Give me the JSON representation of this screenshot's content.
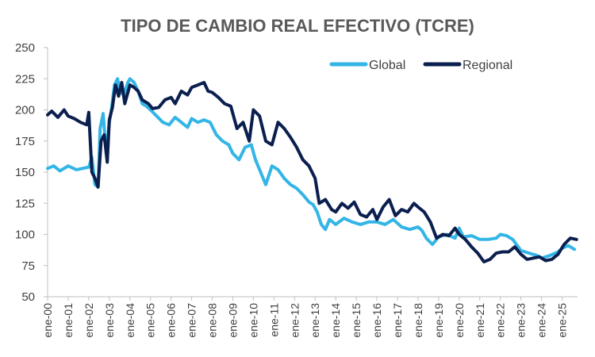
{
  "chart_data": {
    "type": "line",
    "title": "TIPO DE CAMBIO REAL EFECTIVO (TCRE)",
    "xlabel": "",
    "ylabel": "",
    "ylim": [
      50,
      250
    ],
    "yticks": [
      50,
      75,
      100,
      125,
      150,
      175,
      200,
      225,
      250
    ],
    "x_range": [
      2000.0,
      2025.75
    ],
    "xticks": [
      "ene-00",
      "ene-01",
      "ene-02",
      "ene-03",
      "ene-04",
      "ene-05",
      "ene-06",
      "ene-07",
      "ene-08",
      "ene-09",
      "ene-10",
      "ene-11",
      "ene-12",
      "ene-13",
      "ene-14",
      "ene-15",
      "ene-16",
      "ene-17",
      "ene-18",
      "ene-19",
      "ene-20",
      "ene-21",
      "ene-22",
      "ene-23",
      "ene-24",
      "ene-25"
    ],
    "grid": false,
    "legend_position": "top-right",
    "colors": {
      "Global": "#33b5e6",
      "Regional": "#0b1f4f"
    },
    "series": [
      {
        "name": "Global",
        "x": [
          2000.0,
          2000.3,
          2000.6,
          2001.0,
          2001.4,
          2001.7,
          2002.0,
          2002.15,
          2002.3,
          2002.45,
          2002.55,
          2002.7,
          2002.85,
          2003.0,
          2003.1,
          2003.25,
          2003.4,
          2003.5,
          2003.7,
          2003.9,
          2004.0,
          2004.2,
          2004.4,
          2004.6,
          2004.8,
          2005.0,
          2005.3,
          2005.6,
          2005.9,
          2006.2,
          2006.5,
          2006.8,
          2007.0,
          2007.3,
          2007.6,
          2007.9,
          2008.2,
          2008.5,
          2008.8,
          2009.0,
          2009.3,
          2009.6,
          2009.9,
          2010.1,
          2010.4,
          2010.6,
          2010.9,
          2011.2,
          2011.5,
          2011.8,
          2012.1,
          2012.4,
          2012.7,
          2012.9,
          2013.1,
          2013.3,
          2013.5,
          2013.7,
          2014.0,
          2014.4,
          2014.8,
          2015.2,
          2015.6,
          2016.0,
          2016.4,
          2016.8,
          2017.2,
          2017.6,
          2018.0,
          2018.2,
          2018.4,
          2018.7,
          2019.0,
          2019.4,
          2019.8,
          2020.0,
          2020.2,
          2020.6,
          2021.0,
          2021.4,
          2021.8,
          2022.0,
          2022.3,
          2022.6,
          2023.0,
          2023.4,
          2023.8,
          2024.0,
          2024.4,
          2024.8,
          2025.0,
          2025.3,
          2025.6
        ],
        "values": [
          153,
          155,
          151,
          155,
          152,
          153,
          154,
          162,
          140,
          138,
          185,
          197,
          165,
          190,
          200,
          220,
          225,
          215,
          212,
          222,
          225,
          222,
          215,
          205,
          203,
          200,
          195,
          190,
          188,
          194,
          190,
          186,
          193,
          190,
          192,
          190,
          180,
          175,
          172,
          165,
          160,
          170,
          172,
          160,
          148,
          140,
          155,
          152,
          145,
          140,
          137,
          132,
          126,
          124,
          118,
          108,
          104,
          112,
          108,
          113,
          110,
          108,
          110,
          110,
          108,
          112,
          106,
          104,
          106,
          103,
          97,
          92,
          98,
          100,
          97,
          105,
          98,
          99,
          96,
          96,
          97,
          100,
          99,
          96,
          87,
          85,
          83,
          81,
          83,
          86,
          89,
          91,
          88
        ]
      },
      {
        "name": "Regional",
        "x": [
          2000.0,
          2000.2,
          2000.5,
          2000.8,
          2001.0,
          2001.3,
          2001.6,
          2001.9,
          2002.0,
          2002.15,
          2002.3,
          2002.45,
          2002.6,
          2002.75,
          2002.9,
          2003.0,
          2003.15,
          2003.3,
          2003.45,
          2003.6,
          2003.75,
          2003.9,
          2004.0,
          2004.2,
          2004.4,
          2004.6,
          2004.9,
          2005.1,
          2005.4,
          2005.7,
          2006.0,
          2006.2,
          2006.5,
          2006.8,
          2007.0,
          2007.3,
          2007.6,
          2007.8,
          2008.0,
          2008.3,
          2008.6,
          2008.9,
          2009.2,
          2009.5,
          2009.8,
          2010.0,
          2010.3,
          2010.6,
          2010.9,
          2011.2,
          2011.5,
          2011.8,
          2012.1,
          2012.4,
          2012.7,
          2013.0,
          2013.2,
          2013.5,
          2013.8,
          2014.0,
          2014.3,
          2014.6,
          2014.9,
          2015.2,
          2015.5,
          2015.8,
          2016.0,
          2016.3,
          2016.6,
          2016.9,
          2017.2,
          2017.5,
          2017.8,
          2018.0,
          2018.3,
          2018.6,
          2018.9,
          2019.2,
          2019.5,
          2019.8,
          2020.0,
          2020.3,
          2020.6,
          2020.9,
          2021.2,
          2021.5,
          2021.8,
          2022.1,
          2022.4,
          2022.7,
          2023.0,
          2023.3,
          2023.6,
          2023.9,
          2024.2,
          2024.5,
          2024.8,
          2025.1,
          2025.4,
          2025.7
        ],
        "values": [
          196,
          199,
          194,
          200,
          195,
          193,
          190,
          188,
          198,
          150,
          145,
          138,
          175,
          180,
          158,
          192,
          202,
          220,
          211,
          222,
          205,
          214,
          220,
          218,
          215,
          208,
          205,
          201,
          202,
          208,
          210,
          205,
          215,
          212,
          218,
          220,
          222,
          215,
          214,
          210,
          205,
          203,
          185,
          190,
          175,
          200,
          195,
          175,
          172,
          190,
          185,
          178,
          170,
          160,
          155,
          145,
          125,
          128,
          120,
          118,
          125,
          121,
          126,
          116,
          114,
          120,
          112,
          122,
          128,
          115,
          120,
          118,
          125,
          122,
          118,
          110,
          97,
          100,
          99,
          105,
          100,
          96,
          90,
          85,
          78,
          80,
          85,
          86,
          86,
          90,
          84,
          80,
          81,
          82,
          79,
          80,
          84,
          92,
          97,
          96
        ]
      }
    ]
  }
}
